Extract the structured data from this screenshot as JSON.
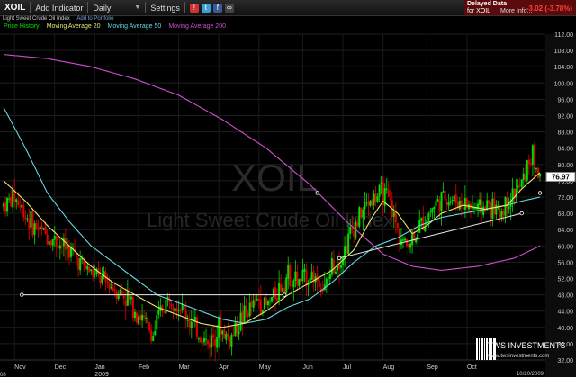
{
  "toolbar": {
    "ticker": "XOIL",
    "add_indicator": "Add Indicator",
    "interval": "Daily",
    "settings": "Settings"
  },
  "delayed": {
    "label": "Delayed Data",
    "for": "for XOIL",
    "more_info": "More Info...",
    "change": "-3.02 (-3.78%)"
  },
  "subtitle": {
    "name": "Light Sweet Crude Oil Index",
    "add_to_portfolio": "Add to Portfolio"
  },
  "legend": [
    {
      "label": "Price History",
      "color": "#00e000"
    },
    {
      "label": "Moving Average 20",
      "color": "#e8e870"
    },
    {
      "label": "Moving Average 50",
      "color": "#66d8e0"
    },
    {
      "label": "Moving Average 200",
      "color": "#d050d0"
    }
  ],
  "watermark": {
    "ticker": "XOIL",
    "name": "Light Sweet Crude Oil Index"
  },
  "logo": {
    "name": "TWS INVESTMENTS",
    "url": "www.twsinvestments.com"
  },
  "chart_data": {
    "type": "candlestick",
    "yaxis": {
      "min": 32,
      "max": 112,
      "ticks": [
        "112.00",
        "108.00",
        "104.00",
        "100.00",
        "96.00",
        "92.00",
        "88.00",
        "84.00",
        "80.00",
        "76.00",
        "72.00",
        "68.00",
        "64.00",
        "60.00",
        "56.00",
        "52.00",
        "48.00",
        "44.00",
        "40.00",
        "36.00",
        "32.00"
      ]
    },
    "xaxis": {
      "labels": [
        "Nov",
        "Dec",
        "Jan\n2009",
        "Feb",
        "Mar",
        "Apr",
        "May",
        "Jun",
        "Jul",
        "Aug",
        "Sep",
        "Oct"
      ],
      "left_cut": "08",
      "end_date": "10/20/2009"
    },
    "last_price": "76.97",
    "price_path": [
      [
        0,
        70
      ],
      [
        3,
        72
      ],
      [
        8,
        65
      ],
      [
        13,
        62
      ],
      [
        18,
        59
      ],
      [
        22,
        55
      ],
      [
        26,
        52
      ],
      [
        30,
        50
      ],
      [
        34,
        47
      ],
      [
        38,
        42
      ],
      [
        41,
        38
      ],
      [
        43,
        44
      ],
      [
        46,
        48
      ],
      [
        50,
        43
      ],
      [
        53,
        39
      ],
      [
        56,
        36
      ],
      [
        59,
        40
      ],
      [
        62,
        37
      ],
      [
        65,
        42
      ],
      [
        68,
        45
      ],
      [
        70,
        47
      ],
      [
        72,
        45
      ],
      [
        75,
        49
      ],
      [
        78,
        53
      ],
      [
        81,
        51
      ],
      [
        84,
        53
      ],
      [
        86,
        52
      ],
      [
        88,
        49
      ],
      [
        90,
        55
      ],
      [
        93,
        58
      ],
      [
        95,
        63
      ],
      [
        98,
        68
      ],
      [
        100,
        71
      ],
      [
        102,
        72
      ],
      [
        104,
        73
      ],
      [
        106,
        70
      ],
      [
        108,
        64
      ],
      [
        110,
        60
      ],
      [
        112,
        62
      ],
      [
        115,
        66
      ],
      [
        118,
        70
      ],
      [
        121,
        72
      ],
      [
        124,
        71
      ],
      [
        127,
        70
      ],
      [
        130,
        69
      ],
      [
        133,
        70
      ],
      [
        136,
        68
      ],
      [
        138,
        71
      ],
      [
        140,
        73
      ],
      [
        142,
        75
      ],
      [
        144,
        81
      ],
      [
        145,
        82
      ],
      [
        146,
        79
      ],
      [
        147,
        77
      ]
    ],
    "ma20_path": [
      [
        0,
        76
      ],
      [
        6,
        71
      ],
      [
        12,
        65
      ],
      [
        18,
        60
      ],
      [
        24,
        55
      ],
      [
        30,
        51
      ],
      [
        36,
        48
      ],
      [
        42,
        45
      ],
      [
        48,
        43
      ],
      [
        54,
        41
      ],
      [
        60,
        40
      ],
      [
        66,
        41
      ],
      [
        72,
        44
      ],
      [
        78,
        48
      ],
      [
        84,
        51
      ],
      [
        90,
        54
      ],
      [
        96,
        59
      ],
      [
        101,
        67
      ],
      [
        104,
        71
      ],
      [
        108,
        68
      ],
      [
        112,
        63
      ],
      [
        116,
        65
      ],
      [
        120,
        68
      ],
      [
        126,
        70
      ],
      [
        132,
        69
      ],
      [
        138,
        70
      ],
      [
        142,
        74
      ],
      [
        147,
        78
      ]
    ],
    "ma50_path": [
      [
        0,
        94
      ],
      [
        6,
        84
      ],
      [
        12,
        73
      ],
      [
        18,
        66
      ],
      [
        24,
        60
      ],
      [
        30,
        56
      ],
      [
        36,
        52
      ],
      [
        42,
        48
      ],
      [
        48,
        46
      ],
      [
        54,
        44
      ],
      [
        60,
        42
      ],
      [
        66,
        41
      ],
      [
        72,
        42
      ],
      [
        78,
        45
      ],
      [
        84,
        47
      ],
      [
        90,
        51
      ],
      [
        96,
        56
      ],
      [
        102,
        60
      ],
      [
        108,
        62
      ],
      [
        114,
        65
      ],
      [
        120,
        67
      ],
      [
        126,
        68
      ],
      [
        132,
        69
      ],
      [
        138,
        70
      ],
      [
        142,
        71
      ],
      [
        147,
        72
      ]
    ],
    "ma200_path": [
      [
        0,
        107
      ],
      [
        12,
        106
      ],
      [
        24,
        104
      ],
      [
        36,
        101
      ],
      [
        48,
        97
      ],
      [
        60,
        91
      ],
      [
        72,
        84
      ],
      [
        84,
        75
      ],
      [
        94,
        66
      ],
      [
        104,
        58
      ],
      [
        112,
        55
      ],
      [
        120,
        54
      ],
      [
        130,
        55
      ],
      [
        140,
        57
      ],
      [
        147,
        60
      ]
    ],
    "trendlines": [
      {
        "kind": "horizontal",
        "y": 48,
        "from_x": 5,
        "to_x": 77
      },
      {
        "kind": "horizontal",
        "y": 73,
        "from_x": 86,
        "to_x": 147
      },
      {
        "kind": "rising",
        "from": [
          92,
          57
        ],
        "to": [
          142,
          68
        ]
      }
    ]
  }
}
